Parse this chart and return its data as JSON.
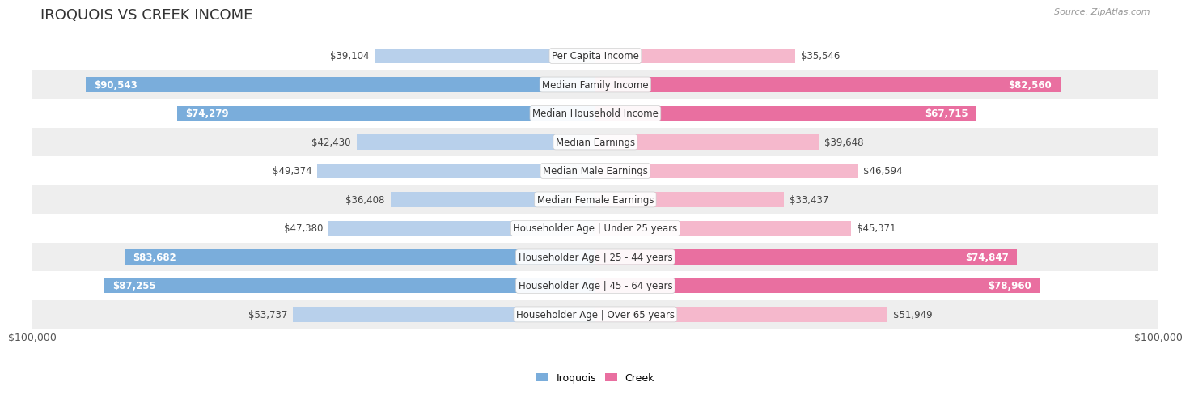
{
  "title": "IROQUOIS VS CREEK INCOME",
  "source": "Source: ZipAtlas.com",
  "categories": [
    "Per Capita Income",
    "Median Family Income",
    "Median Household Income",
    "Median Earnings",
    "Median Male Earnings",
    "Median Female Earnings",
    "Householder Age | Under 25 years",
    "Householder Age | 25 - 44 years",
    "Householder Age | 45 - 64 years",
    "Householder Age | Over 65 years"
  ],
  "iroquois_values": [
    39104,
    90543,
    74279,
    42430,
    49374,
    36408,
    47380,
    83682,
    87255,
    53737
  ],
  "creek_values": [
    35546,
    82560,
    67715,
    39648,
    46594,
    33437,
    45371,
    74847,
    78960,
    51949
  ],
  "iroquois_color_light": "#b8d0eb",
  "iroquois_color_dark": "#7aaddb",
  "creek_color_light": "#f5b8cc",
  "creek_color_dark": "#e96fa0",
  "max_value": 100000,
  "xlabel_left": "$100,000",
  "xlabel_right": "$100,000",
  "legend_iroquois": "Iroquois",
  "legend_creek": "Creek",
  "bg_color": "#ffffff",
  "row_bg_light": "#ffffff",
  "row_bg_dark": "#eeeeee",
  "title_fontsize": 13,
  "label_fontsize": 8.5,
  "category_fontsize": 8.5,
  "dark_threshold": 60000
}
